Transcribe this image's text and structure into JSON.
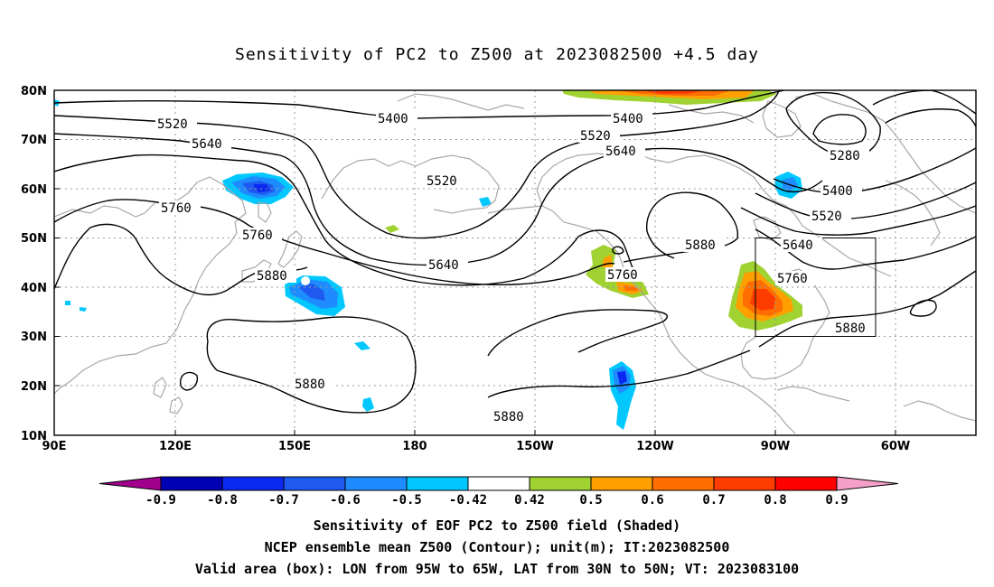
{
  "title": "Sensitivity of PC2 to Z500 at 2023082500 +4.5 day",
  "map": {
    "lat_labels": [
      "80N",
      "70N",
      "60N",
      "50N",
      "40N",
      "30N",
      "20N",
      "10N"
    ],
    "lon_labels": [
      "90E",
      "120E",
      "150E",
      "180",
      "150W",
      "120W",
      "90W",
      "60W"
    ],
    "contour_labels": [
      {
        "text": "5520"
      },
      {
        "text": "5640"
      },
      {
        "text": "5400"
      },
      {
        "text": "5400"
      },
      {
        "text": "5520"
      },
      {
        "text": "5640"
      },
      {
        "text": "5280"
      },
      {
        "text": "5520"
      },
      {
        "text": "5400"
      },
      {
        "text": "5760"
      },
      {
        "text": "5520"
      },
      {
        "text": "5760"
      },
      {
        "text": "5640"
      },
      {
        "text": "5880"
      },
      {
        "text": "5640"
      },
      {
        "text": "5880"
      },
      {
        "text": "5760"
      },
      {
        "text": "5760"
      },
      {
        "text": "5880"
      },
      {
        "text": "5880"
      },
      {
        "text": "5880"
      }
    ],
    "valid_box": {
      "lon_from": "95W",
      "lon_to": "65W",
      "lat_from": "30N",
      "lat_to": "50N"
    }
  },
  "colorbar": {
    "labels": [
      "-0.9",
      "-0.8",
      "-0.7",
      "-0.6",
      "-0.5",
      "-0.42",
      "0.42",
      "0.5",
      "0.6",
      "0.7",
      "0.8",
      "0.9"
    ],
    "colors": [
      "#a0008c",
      "#0000b4",
      "#0a28f0",
      "#1e5af0",
      "#1e8cff",
      "#00c8ff",
      "#ffffff",
      "#a0d232",
      "#ffa000",
      "#ff6e00",
      "#ff3c00",
      "#ff0000",
      "#f5a0c8"
    ]
  },
  "captions": [
    "Sensitivity of EOF PC2 to Z500 field (Shaded)",
    "NCEP ensemble mean Z500 (Contour); unit(m); IT:2023082500",
    "Valid area (box): LON from 95W to 65W, LAT from 30N to 50N; VT: 2023083100"
  ]
}
